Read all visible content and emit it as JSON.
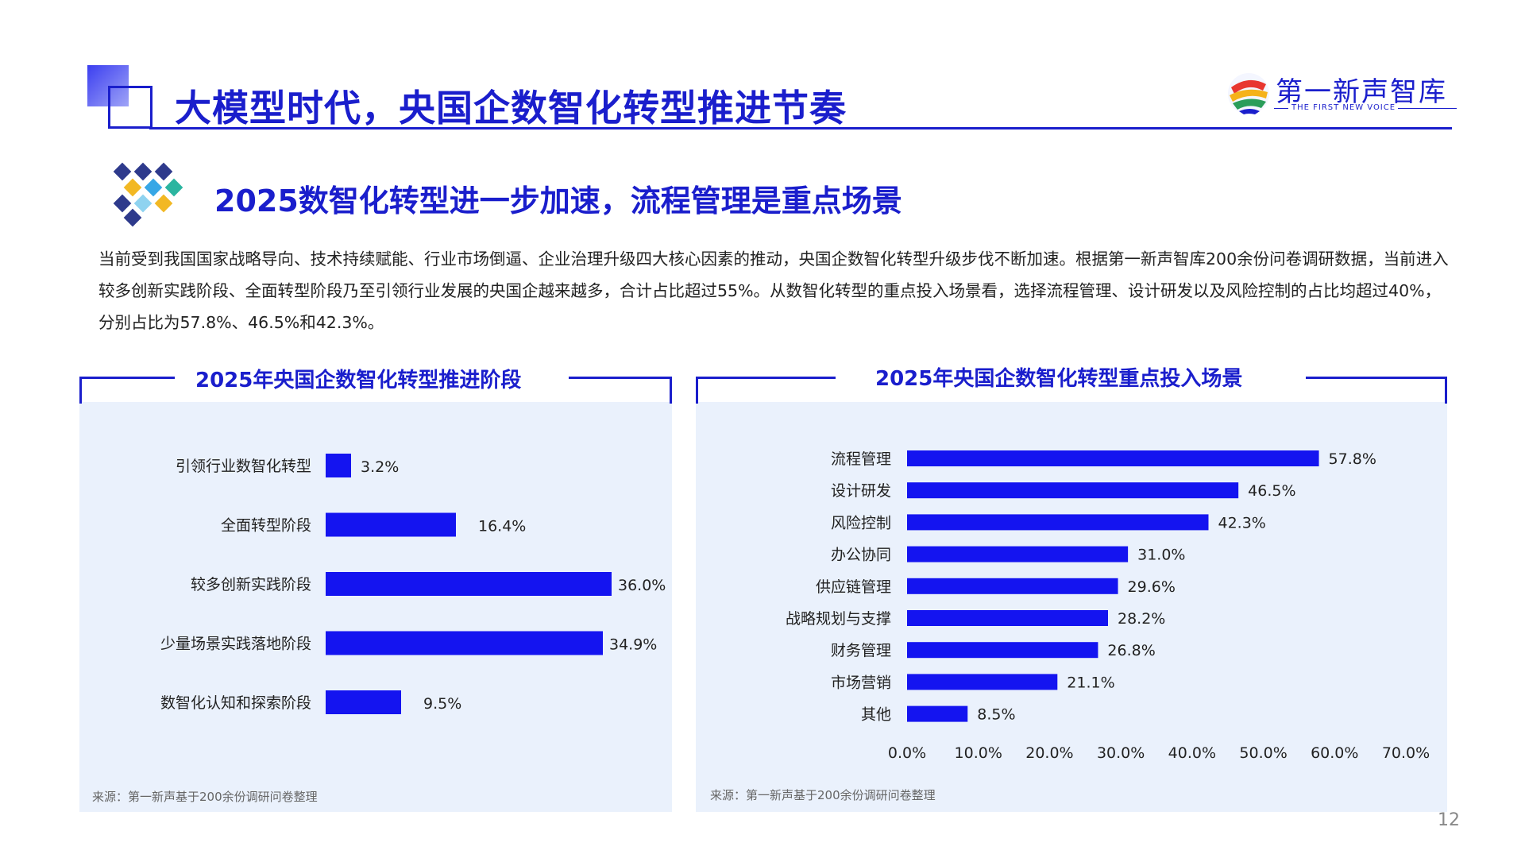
{
  "header": {
    "title": "大模型时代，央国企数智化转型推进节奏",
    "logo_text": "第一新声智库",
    "logo_sub": "THE FIRST NEW VOICE"
  },
  "section": {
    "title": "2025数智化转型进一步加速，流程管理是重点场景",
    "body": "当前受到我国国家战略导向、技术持续赋能、行业市场倒逼、企业治理升级四大核心因素的推动，央国企数智化转型升级步伐不断加速。根据第一新声智库200余份问卷调研数据，当前进入较多创新实践阶段、全面转型阶段乃至引领行业发展的央国企越来越多，合计占比超过55%。从数智化转型的重点投入场景看，选择流程管理、设计研发以及风险控制的占比均超过40%，分别占比为57.8%、46.5%和42.3%。"
  },
  "left_panel": {
    "title": "2025年央国企数智化转型推进阶段",
    "source": "来源：第一新声基于200余份调研问卷整理"
  },
  "right_panel": {
    "title": "2025年央国企数智化转型重点投入场景",
    "source": "来源：第一新声基于200余份调研问卷整理"
  },
  "page_number": "12",
  "colors": {
    "accent": "#1a1ecc",
    "bar": "#1414f0",
    "panel_bg": "#eaf1fc"
  },
  "chart_data": [
    {
      "type": "bar",
      "orientation": "horizontal",
      "title": "2025年央国企数智化转型推进阶段",
      "categories": [
        "引领行业数智化转型",
        "全面转型阶段",
        "较多创新实践阶段",
        "少量场景实践落地阶段",
        "数智化认知和探索阶段"
      ],
      "values": [
        3.2,
        16.4,
        36.0,
        34.9,
        9.5
      ],
      "value_labels": [
        "3.2%",
        "16.4%",
        "36.0%",
        "34.9%",
        "9.5%"
      ],
      "xlim": [
        0,
        36.0
      ],
      "grid": false,
      "x_axis_shown": false
    },
    {
      "type": "bar",
      "orientation": "horizontal",
      "title": "2025年央国企数智化转型重点投入场景",
      "categories": [
        "流程管理",
        "设计研发",
        "风险控制",
        "办公协同",
        "供应链管理",
        "战略规划与支撑",
        "财务管理",
        "市场营销",
        "其他"
      ],
      "values": [
        57.8,
        46.5,
        42.3,
        31.0,
        29.6,
        28.2,
        26.8,
        21.1,
        8.5
      ],
      "value_labels": [
        "57.8%",
        "46.5%",
        "42.3%",
        "31.0%",
        "29.6%",
        "28.2%",
        "26.8%",
        "21.1%",
        "8.5%"
      ],
      "xlim": [
        0,
        70
      ],
      "x_ticks": [
        "0.0%",
        "10.0%",
        "20.0%",
        "30.0%",
        "40.0%",
        "50.0%",
        "60.0%",
        "70.0%"
      ],
      "grid": false
    }
  ]
}
